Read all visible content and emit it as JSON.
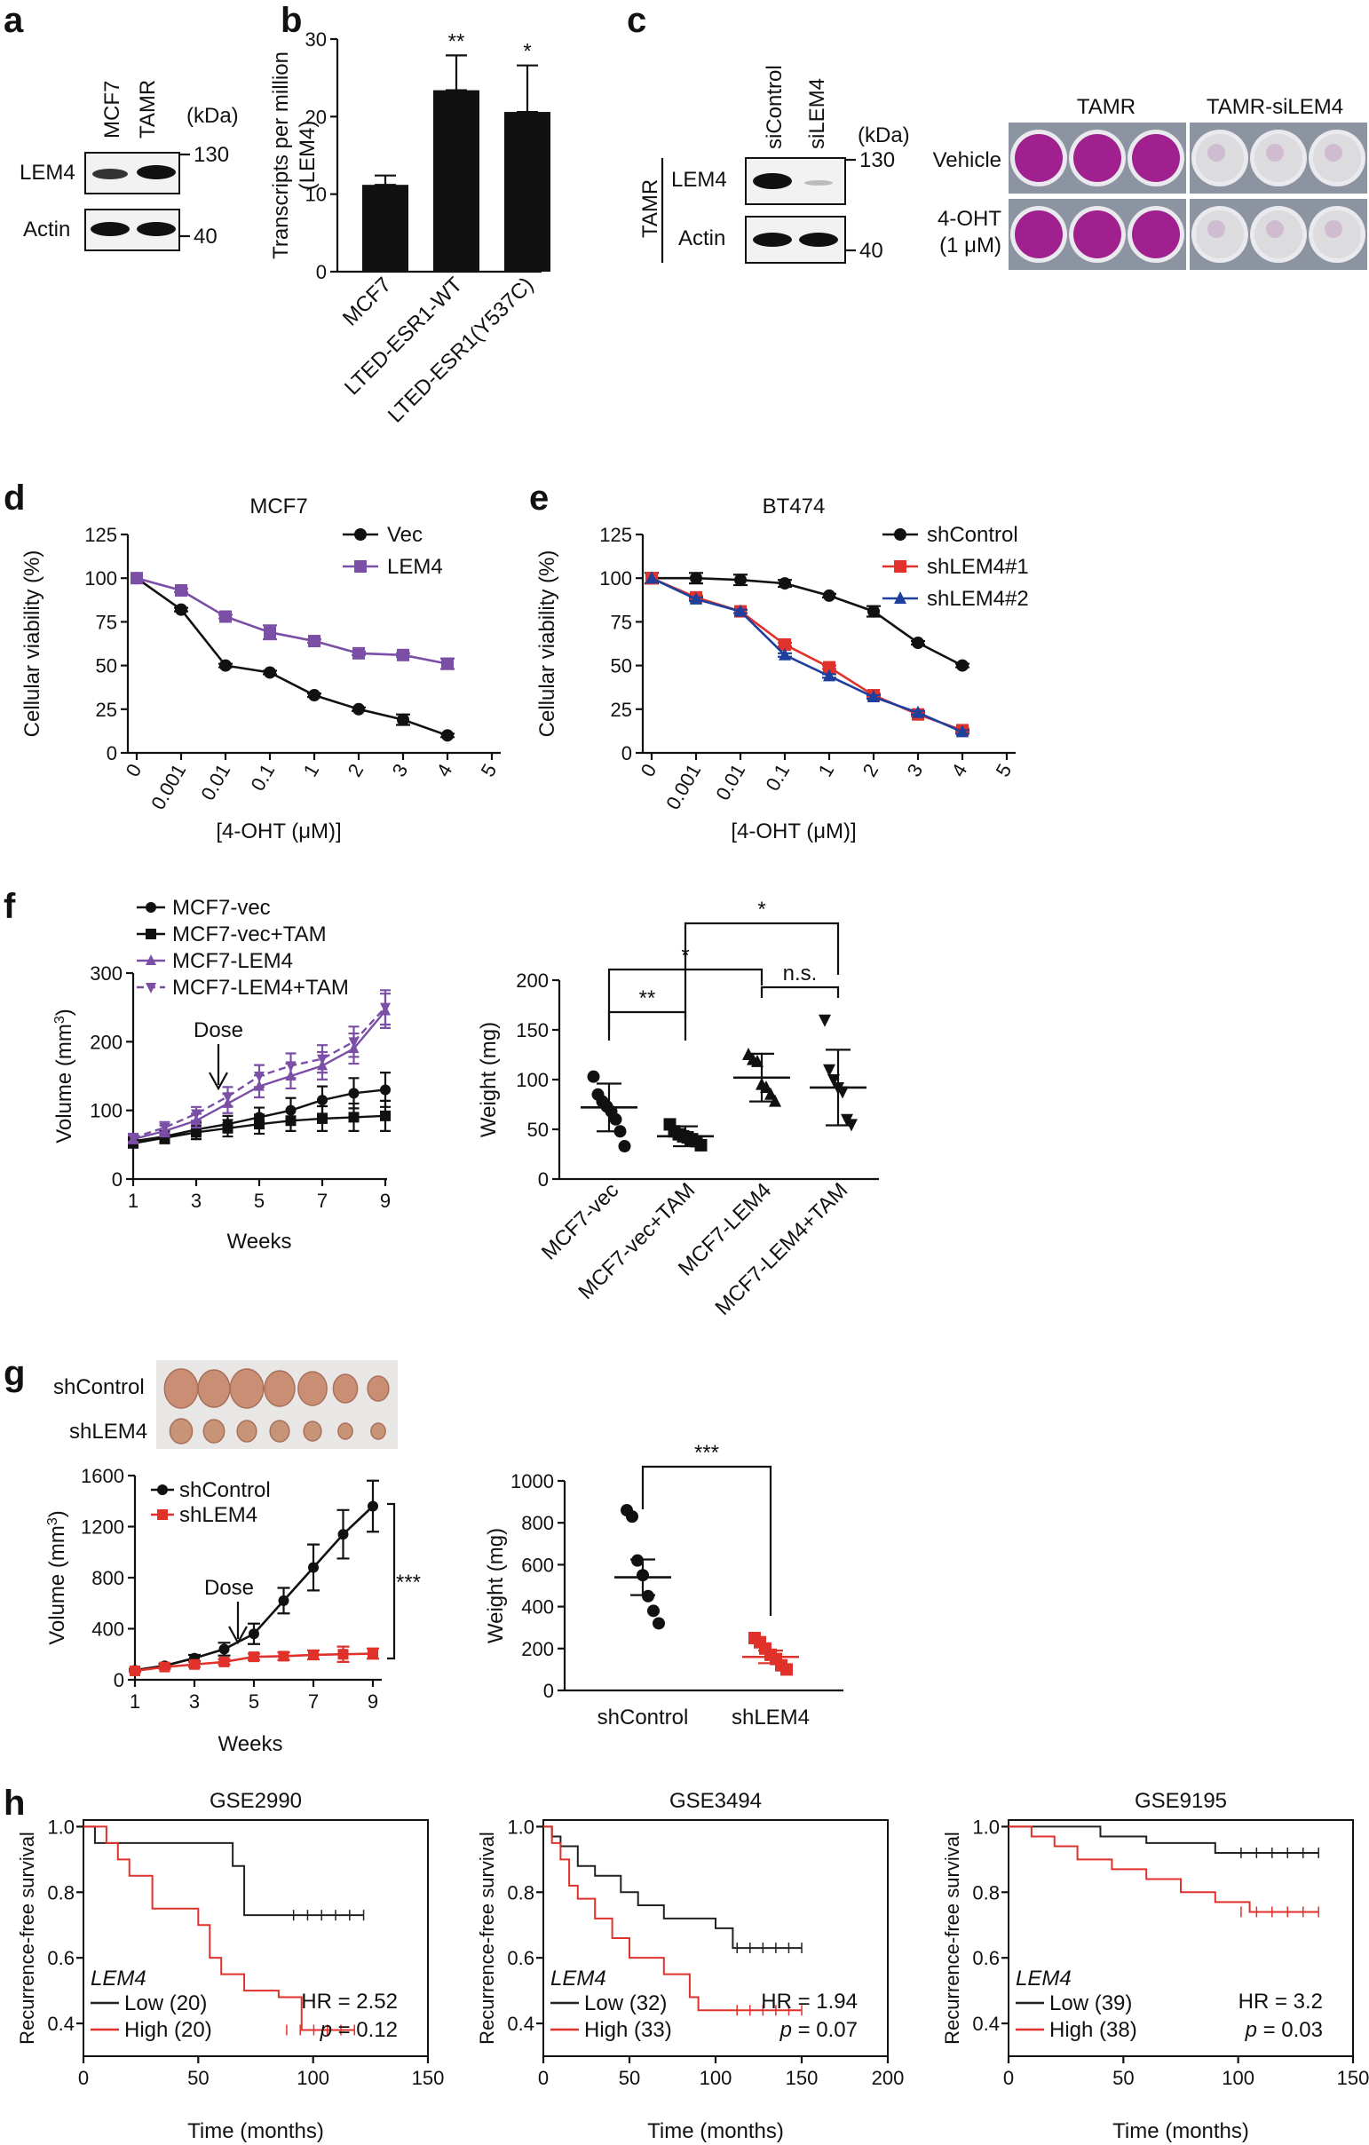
{
  "figure": {
    "panel_labels": [
      "a",
      "b",
      "c",
      "d",
      "e",
      "f",
      "g",
      "h"
    ],
    "colors": {
      "black": "#111111",
      "purple": "#7b4fa6",
      "red": "#e0312b",
      "blue": "#1f3f9c",
      "stain": "#a0208f"
    },
    "panel_a": {
      "lanes": [
        "MCF7",
        "TAMR"
      ],
      "kda_label": "(kDa)",
      "bands": [
        "LEM4",
        "Actin"
      ],
      "markers": [
        "130",
        "40"
      ]
    },
    "panel_c": {
      "lanes": [
        "siControl",
        "siLEM4"
      ],
      "kda_label": "(kDa)",
      "side_label": "TAMR",
      "bands": [
        "LEM4",
        "Actin"
      ],
      "markers": [
        "130",
        "40"
      ],
      "plate_cols": [
        "TAMR",
        "TAMR-siLEM4"
      ],
      "plate_rows": [
        "Vehicle",
        "4-OHT",
        "(1 μM)"
      ]
    },
    "panel_f": {
      "dose_label": "Dose"
    },
    "panel_g": {
      "rows": [
        "shControl",
        "shLEM4"
      ],
      "dose_label": "Dose",
      "sig": "***"
    },
    "panel_h": {
      "gene": "LEM4"
    }
  },
  "chart_data": [
    {
      "id": "b",
      "type": "bar",
      "categories": [
        "MCF7",
        "LTED-ESR1-WT",
        "LTED-ESR1(Y537C)"
      ],
      "values": [
        11.2,
        23.4,
        20.6
      ],
      "errors": [
        1.2,
        4.5,
        6.0
      ],
      "significance": [
        "",
        "**",
        "*"
      ],
      "ylabel": "Transcripts per million (LEM4)",
      "ylabel_lines": [
        "Transcripts per million",
        "(LEM4)"
      ],
      "ylim": [
        0,
        30
      ],
      "yticks": [
        "0",
        "10",
        "20",
        "30"
      ]
    },
    {
      "id": "d",
      "type": "line",
      "title": "MCF7",
      "x_ticks": [
        "0",
        "0.001",
        "0.01",
        "0.1",
        "1",
        "2",
        "3",
        "4",
        "5"
      ],
      "xlabel": "[4-OHT (μM)]",
      "ylabel": "Cellular viability (%)",
      "ylim": [
        0,
        125
      ],
      "yticks": [
        "0",
        "25",
        "50",
        "75",
        "100",
        "125"
      ],
      "series": [
        {
          "name": "Vec",
          "values": [
            100,
            82,
            50,
            46,
            33,
            25,
            19,
            10
          ],
          "errors": [
            0,
            1,
            1,
            1,
            1,
            1,
            3,
            1
          ]
        },
        {
          "name": "LEM4",
          "values": [
            100,
            93,
            78,
            69,
            64,
            57,
            56,
            51
          ],
          "errors": [
            0,
            1,
            1,
            4,
            1,
            1,
            1,
            3
          ]
        }
      ]
    },
    {
      "id": "e",
      "type": "line",
      "title": "BT474",
      "x_ticks": [
        "0",
        "0.001",
        "0.01",
        "0.1",
        "1",
        "2",
        "3",
        "4",
        "5"
      ],
      "xlabel": "[4-OHT (μM)]",
      "ylabel": "Cellular viability (%)",
      "ylim": [
        0,
        125
      ],
      "yticks": [
        "0",
        "25",
        "50",
        "75",
        "100",
        "125"
      ],
      "series": [
        {
          "name": "shControl",
          "values": [
            100,
            100,
            99,
            97,
            90,
            81,
            63,
            50
          ],
          "errors": [
            3,
            3,
            3,
            2,
            1,
            3,
            1,
            1
          ]
        },
        {
          "name": "shLEM4#1",
          "values": [
            100,
            89,
            81,
            62,
            49,
            33,
            22,
            13
          ],
          "errors": [
            0,
            1,
            1,
            1,
            1,
            1,
            1,
            1
          ]
        },
        {
          "name": "shLEM4#2",
          "values": [
            100,
            88,
            81,
            56,
            44,
            32,
            23,
            12
          ],
          "errors": [
            0,
            1,
            1,
            1,
            1,
            1,
            1,
            1
          ]
        }
      ]
    },
    {
      "id": "f1",
      "type": "line",
      "x": [
        1,
        2,
        3,
        4,
        5,
        6,
        7,
        8,
        9
      ],
      "x_ticks": [
        "1",
        "3",
        "5",
        "7",
        "9"
      ],
      "xlabel": "Weeks",
      "ylabel": "Volume (mm3)",
      "ylim": [
        0,
        300
      ],
      "yticks": [
        "0",
        "100",
        "200",
        "300"
      ],
      "series": [
        {
          "name": "MCF7-vec",
          "values": [
            55,
            62,
            72,
            80,
            90,
            100,
            115,
            125,
            130
          ],
          "errors": [
            6,
            8,
            10,
            12,
            14,
            18,
            20,
            22,
            25
          ]
        },
        {
          "name": "MCF7-vec+TAM",
          "values": [
            52,
            60,
            68,
            74,
            80,
            85,
            88,
            90,
            92
          ],
          "errors": [
            6,
            8,
            10,
            12,
            14,
            15,
            18,
            20,
            22
          ]
        },
        {
          "name": "MCF7-LEM4",
          "values": [
            58,
            70,
            85,
            110,
            135,
            150,
            165,
            190,
            245
          ],
          "errors": [
            6,
            8,
            10,
            14,
            16,
            18,
            20,
            22,
            25
          ]
        },
        {
          "name": "MCF7-LEM4+TAM",
          "values": [
            60,
            75,
            95,
            120,
            150,
            165,
            175,
            200,
            250
          ],
          "errors": [
            6,
            8,
            10,
            14,
            16,
            18,
            20,
            22,
            25
          ]
        }
      ]
    },
    {
      "id": "f2",
      "type": "scatter",
      "categories": [
        "MCF7-vec",
        "MCF7-vec+TAM",
        "MCF7-LEM4",
        "MCF7-LEM4+TAM"
      ],
      "means": [
        72,
        43,
        102,
        92
      ],
      "sd": [
        24,
        10,
        24,
        38
      ],
      "points": [
        [
          103,
          85,
          78,
          73,
          68,
          60,
          48,
          33
        ],
        [
          55,
          48,
          45,
          43,
          42,
          40,
          38,
          34
        ],
        [
          125,
          120,
          118,
          95,
          92,
          85,
          78
        ],
        [
          160,
          110,
          100,
          92,
          88,
          60,
          55
        ]
      ],
      "ylabel": "Weight (mg)",
      "ylim": [
        0,
        200
      ],
      "yticks": [
        "0",
        "50",
        "100",
        "150",
        "200"
      ],
      "comparisons": [
        {
          "pair": [
            0,
            1
          ],
          "label": "**"
        },
        {
          "pair": [
            0,
            2
          ],
          "label": "*"
        },
        {
          "pair": [
            2,
            3
          ],
          "label": "n.s."
        },
        {
          "pair": [
            1,
            3
          ],
          "label": "*"
        }
      ]
    },
    {
      "id": "g1",
      "type": "line",
      "x": [
        1,
        2,
        3,
        4,
        5,
        6,
        7,
        8,
        9
      ],
      "x_ticks": [
        "1",
        "3",
        "5",
        "7",
        "9"
      ],
      "xlabel": "Weeks",
      "ylabel": "Volume (mm3)",
      "ylim": [
        0,
        1600
      ],
      "yticks": [
        "0",
        "400",
        "800",
        "1200",
        "1600"
      ],
      "series": [
        {
          "name": "shControl",
          "values": [
            75,
            110,
            170,
            240,
            360,
            620,
            880,
            1140,
            1360
          ],
          "errors": [
            10,
            15,
            25,
            50,
            80,
            100,
            180,
            190,
            200
          ]
        },
        {
          "name": "shLEM4",
          "values": [
            70,
            100,
            120,
            140,
            180,
            185,
            195,
            200,
            205
          ],
          "errors": [
            10,
            15,
            20,
            20,
            25,
            30,
            35,
            60,
            40
          ]
        }
      ]
    },
    {
      "id": "g2",
      "type": "scatter",
      "categories": [
        "shControl",
        "shLEM4"
      ],
      "means": [
        540,
        160
      ],
      "sem": [
        85,
        30
      ],
      "points": [
        [
          860,
          830,
          620,
          550,
          450,
          380,
          320
        ],
        [
          250,
          230,
          200,
          170,
          150,
          120,
          100
        ]
      ],
      "ylabel": "Weight (mg)",
      "ylim": [
        0,
        1000
      ],
      "yticks": [
        "0",
        "200",
        "400",
        "600",
        "800",
        "1000"
      ],
      "comparisons": [
        {
          "pair": [
            0,
            1
          ],
          "label": "***"
        }
      ]
    },
    {
      "id": "h1",
      "type": "line",
      "title": "GSE2990",
      "xlabel": "Time (months)",
      "ylabel": "Recurrence-free survival",
      "xlim": [
        0,
        150
      ],
      "xticks": [
        "0",
        "50",
        "100",
        "150"
      ],
      "ylim": [
        0.3,
        1.02
      ],
      "yticks": [
        "0.4",
        "0.6",
        "0.8",
        "1.0"
      ],
      "series": [
        {
          "name": "Low (20)",
          "steps": [
            [
              0,
              1.0
            ],
            [
              5,
              0.95
            ],
            [
              65,
              0.88
            ],
            [
              70,
              0.73
            ],
            [
              122,
              0.73
            ]
          ]
        },
        {
          "name": "High (20)",
          "steps": [
            [
              0,
              1.0
            ],
            [
              10,
              0.95
            ],
            [
              15,
              0.9
            ],
            [
              20,
              0.85
            ],
            [
              30,
              0.75
            ],
            [
              50,
              0.7
            ],
            [
              55,
              0.6
            ],
            [
              60,
              0.55
            ],
            [
              70,
              0.5
            ],
            [
              85,
              0.48
            ],
            [
              95,
              0.38
            ],
            [
              118,
              0.38
            ]
          ]
        }
      ],
      "stats": {
        "hr": "HR = 2.52",
        "p_label": "p",
        "p_value": " = 0.12"
      }
    },
    {
      "id": "h2",
      "type": "line",
      "title": "GSE3494",
      "xlabel": "Time (months)",
      "ylabel": "Recurrence-free survival",
      "xlim": [
        0,
        200
      ],
      "xticks": [
        "0",
        "50",
        "100",
        "150",
        "200"
      ],
      "ylim": [
        0.3,
        1.02
      ],
      "yticks": [
        "0.4",
        "0.6",
        "0.8",
        "1.0"
      ],
      "series": [
        {
          "name": "Low (32)",
          "steps": [
            [
              0,
              1.0
            ],
            [
              5,
              0.97
            ],
            [
              10,
              0.94
            ],
            [
              20,
              0.88
            ],
            [
              30,
              0.85
            ],
            [
              45,
              0.8
            ],
            [
              55,
              0.76
            ],
            [
              70,
              0.72
            ],
            [
              100,
              0.69
            ],
            [
              110,
              0.63
            ],
            [
              150,
              0.63
            ]
          ]
        },
        {
          "name": "High (33)",
          "steps": [
            [
              0,
              1.0
            ],
            [
              5,
              0.95
            ],
            [
              10,
              0.9
            ],
            [
              15,
              0.82
            ],
            [
              20,
              0.78
            ],
            [
              30,
              0.72
            ],
            [
              40,
              0.66
            ],
            [
              50,
              0.6
            ],
            [
              70,
              0.55
            ],
            [
              85,
              0.48
            ],
            [
              90,
              0.44
            ],
            [
              150,
              0.44
            ]
          ]
        }
      ],
      "stats": {
        "hr": "HR = 1.94",
        "p_label": "p",
        "p_value": " = 0.07"
      }
    },
    {
      "id": "h3",
      "type": "line",
      "title": "GSE9195",
      "xlabel": "Time (months)",
      "ylabel": "Recurrence-free survival",
      "xlim": [
        0,
        150
      ],
      "xticks": [
        "0",
        "50",
        "100",
        "150"
      ],
      "ylim": [
        0.3,
        1.02
      ],
      "yticks": [
        "0.4",
        "0.6",
        "0.8",
        "1.0"
      ],
      "series": [
        {
          "name": "Low (39)",
          "steps": [
            [
              0,
              1.0
            ],
            [
              40,
              0.97
            ],
            [
              60,
              0.95
            ],
            [
              90,
              0.92
            ],
            [
              135,
              0.92
            ]
          ]
        },
        {
          "name": "High (38)",
          "steps": [
            [
              0,
              1.0
            ],
            [
              10,
              0.97
            ],
            [
              20,
              0.94
            ],
            [
              30,
              0.9
            ],
            [
              45,
              0.87
            ],
            [
              60,
              0.84
            ],
            [
              75,
              0.8
            ],
            [
              90,
              0.77
            ],
            [
              105,
              0.74
            ],
            [
              135,
              0.74
            ]
          ]
        }
      ],
      "stats": {
        "hr": "HR = 3.2",
        "p_label": "p",
        "p_value": " = 0.03"
      }
    }
  ]
}
